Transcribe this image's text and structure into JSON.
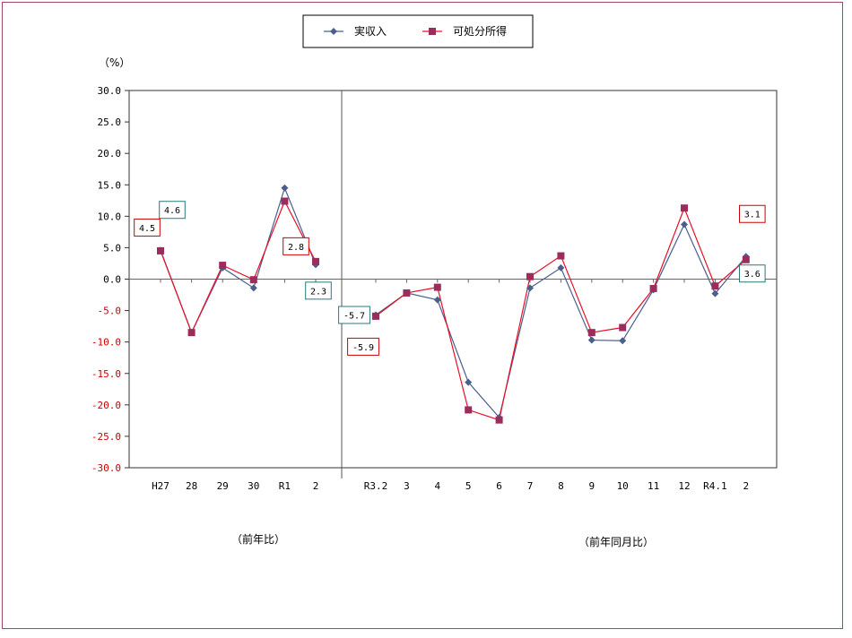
{
  "chart_data": {
    "type": "line",
    "unit_label": "（%）",
    "legend_position": "top",
    "grid": false,
    "ylim": [
      -30,
      30
    ],
    "yticks": [
      "30.0",
      "25.0",
      "20.0",
      "15.0",
      "10.0",
      "5.0",
      "0.0",
      "-5.0",
      "-10.0",
      "-15.0",
      "-20.0",
      "-25.0",
      "-30.0"
    ],
    "colors": {
      "actual_income": "#4a5f8c",
      "disposable_income": "#e8102a",
      "disposable_marker": "#9c2c5c",
      "negative_tick": "#cc0000",
      "frame": "#a0466e"
    },
    "panels": [
      {
        "caption": "（前年比）",
        "categories": [
          "H27",
          "28",
          "29",
          "30",
          "R1",
          "2"
        ],
        "series": [
          {
            "name": "実収入",
            "values": [
              4.6,
              -8.5,
              1.8,
              -1.4,
              14.5,
              2.3
            ]
          },
          {
            "name": "可処分所得",
            "values": [
              4.5,
              -8.5,
              2.2,
              -0.1,
              12.4,
              2.8
            ]
          }
        ]
      },
      {
        "caption": "（前年同月比）",
        "categories": [
          "R3.2",
          "3",
          "4",
          "5",
          "6",
          "7",
          "8",
          "9",
          "10",
          "11",
          "12",
          "R4.1",
          "2"
        ],
        "series": [
          {
            "name": "実収入",
            "values": [
              -5.7,
              -2.2,
              -3.3,
              -16.4,
              -22.0,
              -1.4,
              1.8,
              -9.7,
              -9.8,
              -1.7,
              8.7,
              -2.3,
              3.6
            ]
          },
          {
            "name": "可処分所得",
            "values": [
              -5.9,
              -2.2,
              -1.3,
              -20.8,
              -22.4,
              0.4,
              3.7,
              -8.5,
              -7.7,
              -1.5,
              11.3,
              -1.1,
              3.1
            ]
          }
        ]
      }
    ],
    "annotations": [
      {
        "text": "4.6",
        "series": "実収入",
        "panel": 0,
        "index": 0
      },
      {
        "text": "4.5",
        "series": "可処分所得",
        "panel": 0,
        "index": 0
      },
      {
        "text": "2.8",
        "series": "可処分所得",
        "panel": 0,
        "index": 5
      },
      {
        "text": "2.3",
        "series": "実収入",
        "panel": 0,
        "index": 5
      },
      {
        "text": "-5.7",
        "series": "実収入",
        "panel": 1,
        "index": 0
      },
      {
        "text": "-5.9",
        "series": "可処分所得",
        "panel": 1,
        "index": 0
      },
      {
        "text": "3.1",
        "series": "可処分所得",
        "panel": 1,
        "index": 12
      },
      {
        "text": "3.6",
        "series": "実収入",
        "panel": 1,
        "index": 12
      }
    ],
    "legend": [
      {
        "label": "実収入",
        "series": "実収入"
      },
      {
        "label": "可処分所得",
        "series": "可処分所得"
      }
    ]
  }
}
